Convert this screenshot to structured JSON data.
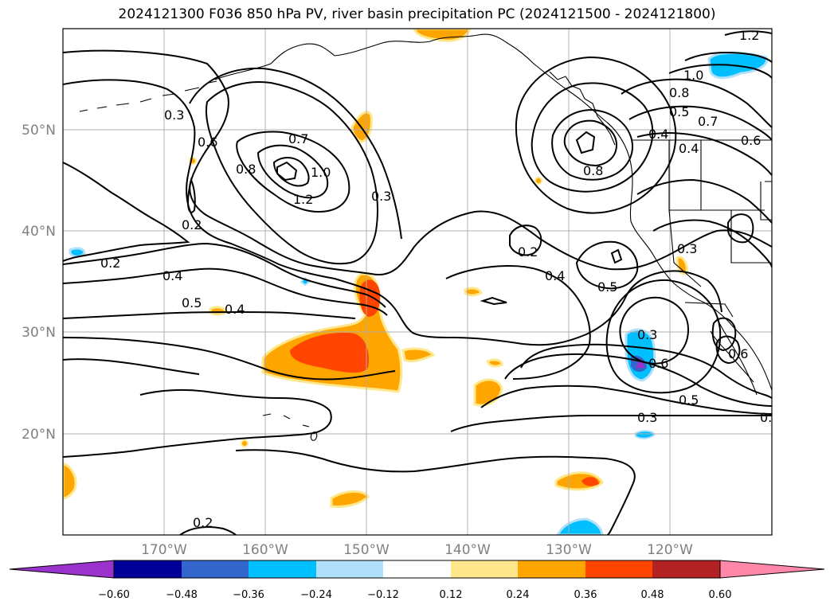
{
  "title": "2024121300 F036 850 hPa PV, river basin precipitation PC (2024121500 - 2024121800)",
  "map": {
    "lon_labels": [
      "170°W",
      "160°W",
      "150°W",
      "140°W",
      "130°W",
      "120°W"
    ],
    "lat_labels": [
      "50°N",
      "40°N",
      "30°N",
      "20°N"
    ],
    "contour_labels": [
      "0.3",
      "0.6",
      "0.8",
      "1.0",
      "1.2",
      "0.7",
      "0.2",
      "0.2",
      "0.4",
      "0.5",
      "0.4",
      "0.3",
      "0.2",
      "0.4",
      "0.5",
      "0.3",
      "0.6",
      "0.5",
      "0.3",
      "0.8",
      "0.4",
      "0.5",
      "0.7",
      "0.6",
      "1.2",
      "1.0",
      "0.8",
      "0.2",
      "0.3",
      "0.6",
      "0.4",
      "0.3"
    ]
  },
  "colorbar": {
    "ticks": [
      "−0.60",
      "−0.48",
      "−0.36",
      "−0.24",
      "−0.12",
      "0.12",
      "0.24",
      "0.36",
      "0.48",
      "0.60"
    ],
    "colors": [
      "#9933cc",
      "#000099",
      "#3366cc",
      "#00bfff",
      "#b0e0fa",
      "#ffffff",
      "#ffe88c",
      "#ffa500",
      "#ff4500",
      "#b22222",
      "#ff88aa",
      "#ff88aa"
    ]
  }
}
